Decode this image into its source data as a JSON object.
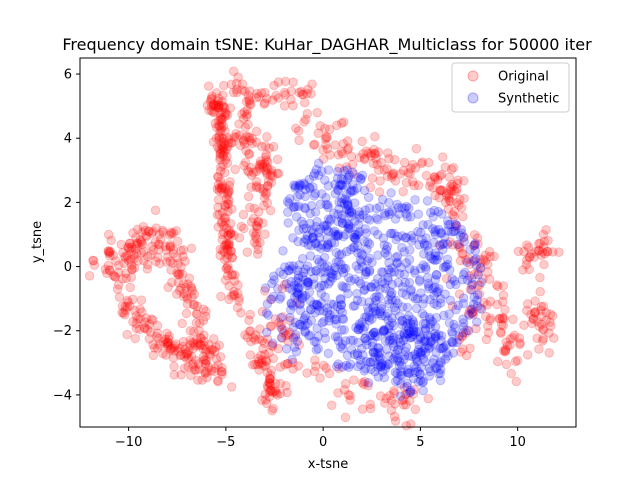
{
  "chart_data": {
    "type": "scatter",
    "title": "Frequency domain tSNE: KuHar_DAGHAR_Multiclass for 50000 iter",
    "xlabel": "x-tsne",
    "ylabel": "y_tsne",
    "xlim": [
      -12.5,
      13.0
    ],
    "ylim": [
      -5.0,
      6.5
    ],
    "xticks": [
      -10,
      -5,
      0,
      5,
      10
    ],
    "xtick_labels": [
      "−10",
      "−5",
      "0",
      "5",
      "10"
    ],
    "yticks": [
      -4,
      -2,
      0,
      2,
      4,
      6
    ],
    "ytick_labels": [
      "−4",
      "−2",
      "0",
      "2",
      "4",
      "6"
    ],
    "grid": false,
    "legend_position": "top-right",
    "series": [
      {
        "name": "Original",
        "color": "#ff0000",
        "clusters": [
          {
            "shape": "polyline",
            "points": [
              [
                -11.6,
                0.0
              ],
              [
                -10.3,
                0.2
              ],
              [
                -9.4,
                0.6
              ],
              [
                -8.2,
                0.9
              ],
              [
                -7.4,
                0.1
              ],
              [
                -6.6,
                -1.6
              ],
              [
                -5.9,
                -2.7
              ],
              [
                -5.5,
                -3.4
              ]
            ],
            "spread": 0.35,
            "count": 200
          },
          {
            "shape": "polyline",
            "points": [
              [
                -10.6,
                -0.4
              ],
              [
                -9.6,
                -1.6
              ],
              [
                -8.4,
                -2.3
              ],
              [
                -7.2,
                -2.7
              ],
              [
                -6.2,
                -3.1
              ]
            ],
            "spread": 0.3,
            "count": 110
          },
          {
            "shape": "polyline",
            "points": [
              [
                -5.7,
                5.4
              ],
              [
                -5.2,
                4.4
              ],
              [
                -5.2,
                3.0
              ],
              [
                -5.0,
                1.6
              ],
              [
                -4.9,
                0.3
              ],
              [
                -4.6,
                -1.0
              ]
            ],
            "spread": 0.22,
            "count": 180
          },
          {
            "shape": "polyline",
            "points": [
              [
                -4.8,
                5.8
              ],
              [
                -3.6,
                5.1
              ],
              [
                -2.0,
                5.4
              ],
              [
                -0.6,
                5.3
              ]
            ],
            "spread": 0.25,
            "count": 50
          },
          {
            "shape": "polyline",
            "points": [
              [
                -4.5,
                4.5
              ],
              [
                -3.5,
                3.6
              ],
              [
                -3.0,
                2.8
              ],
              [
                -3.2,
                1.8
              ],
              [
                -3.6,
                0.6
              ]
            ],
            "spread": 0.45,
            "count": 110
          },
          {
            "shape": "polyline",
            "points": [
              [
                -3.8,
                -1.4
              ],
              [
                -3.2,
                -2.8
              ],
              [
                -2.8,
                -3.8
              ],
              [
                -2.5,
                -4.2
              ]
            ],
            "spread": 0.35,
            "count": 70
          },
          {
            "shape": "polyline",
            "points": [
              [
                -1.4,
                4.5
              ],
              [
                0.2,
                4.0
              ],
              [
                1.8,
                3.6
              ],
              [
                3.2,
                3.0
              ],
              [
                4.6,
                3.2
              ],
              [
                6.0,
                2.8
              ],
              [
                7.0,
                2.4
              ]
            ],
            "spread": 0.35,
            "count": 120
          },
          {
            "shape": "polyline",
            "points": [
              [
                5.6,
                2.6
              ],
              [
                6.6,
                1.6
              ],
              [
                7.4,
                0.6
              ],
              [
                7.9,
                -0.4
              ],
              [
                7.6,
                -1.6
              ],
              [
                7.2,
                -2.2
              ]
            ],
            "spread": 0.4,
            "count": 70
          },
          {
            "shape": "polyline",
            "points": [
              [
                8.3,
                0.6
              ],
              [
                9.0,
                -0.8
              ],
              [
                8.8,
                -1.9
              ],
              [
                9.6,
                -2.4
              ],
              [
                10.0,
                -2.9
              ]
            ],
            "spread": 0.35,
            "count": 55
          },
          {
            "shape": "polyline",
            "points": [
              [
                10.3,
                0.3
              ],
              [
                11.0,
                0.7
              ],
              [
                11.7,
                0.6
              ]
            ],
            "spread": 0.22,
            "count": 30
          },
          {
            "shape": "polyline",
            "points": [
              [
                10.5,
                -1.2
              ],
              [
                11.0,
                -1.7
              ],
              [
                11.4,
                -2.0
              ]
            ],
            "spread": 0.3,
            "count": 35
          },
          {
            "shape": "polyline",
            "points": [
              [
                -1.0,
                -2.8
              ],
              [
                0.5,
                -3.6
              ],
              [
                2.2,
                -3.9
              ],
              [
                3.8,
                -4.3
              ],
              [
                5.4,
                -4.1
              ]
            ],
            "spread": 0.35,
            "count": 50
          },
          {
            "shape": "polyline",
            "points": [
              [
                -2.6,
                -0.6
              ],
              [
                -2.2,
                -2.0
              ],
              [
                -1.6,
                -3.0
              ]
            ],
            "spread": 0.4,
            "count": 30
          }
        ]
      },
      {
        "name": "Synthetic",
        "color": "#0000ff",
        "clusters": [
          {
            "shape": "ellipse",
            "center": [
              3.3,
              -0.6
            ],
            "rx": 5.0,
            "ry": 2.8,
            "count": 620
          },
          {
            "shape": "ellipse",
            "center": [
              0.2,
              1.9
            ],
            "rx": 2.2,
            "ry": 1.3,
            "count": 130
          },
          {
            "shape": "ellipse",
            "center": [
              4.3,
              -2.8
            ],
            "rx": 2.0,
            "ry": 1.1,
            "count": 110
          },
          {
            "shape": "ellipse",
            "center": [
              -1.6,
              -1.2
            ],
            "rx": 1.3,
            "ry": 1.6,
            "count": 70
          }
        ]
      }
    ]
  }
}
